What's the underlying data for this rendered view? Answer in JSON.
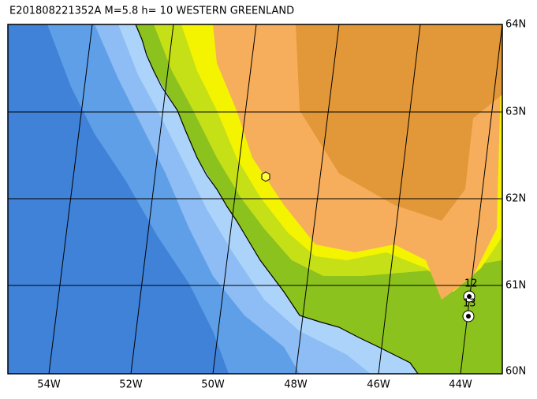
{
  "header": {
    "title": "E201808221352A M=5.8 h= 10 WESTERN GREENLAND"
  },
  "longitude_labels": [
    "54W",
    "52W",
    "50W",
    "48W",
    "46W",
    "44W"
  ],
  "latitude_labels": [
    "64N",
    "63N",
    "62N",
    "61N",
    "60N"
  ],
  "stations": [
    {
      "label": "12"
    },
    {
      "label": "13"
    }
  ]
}
